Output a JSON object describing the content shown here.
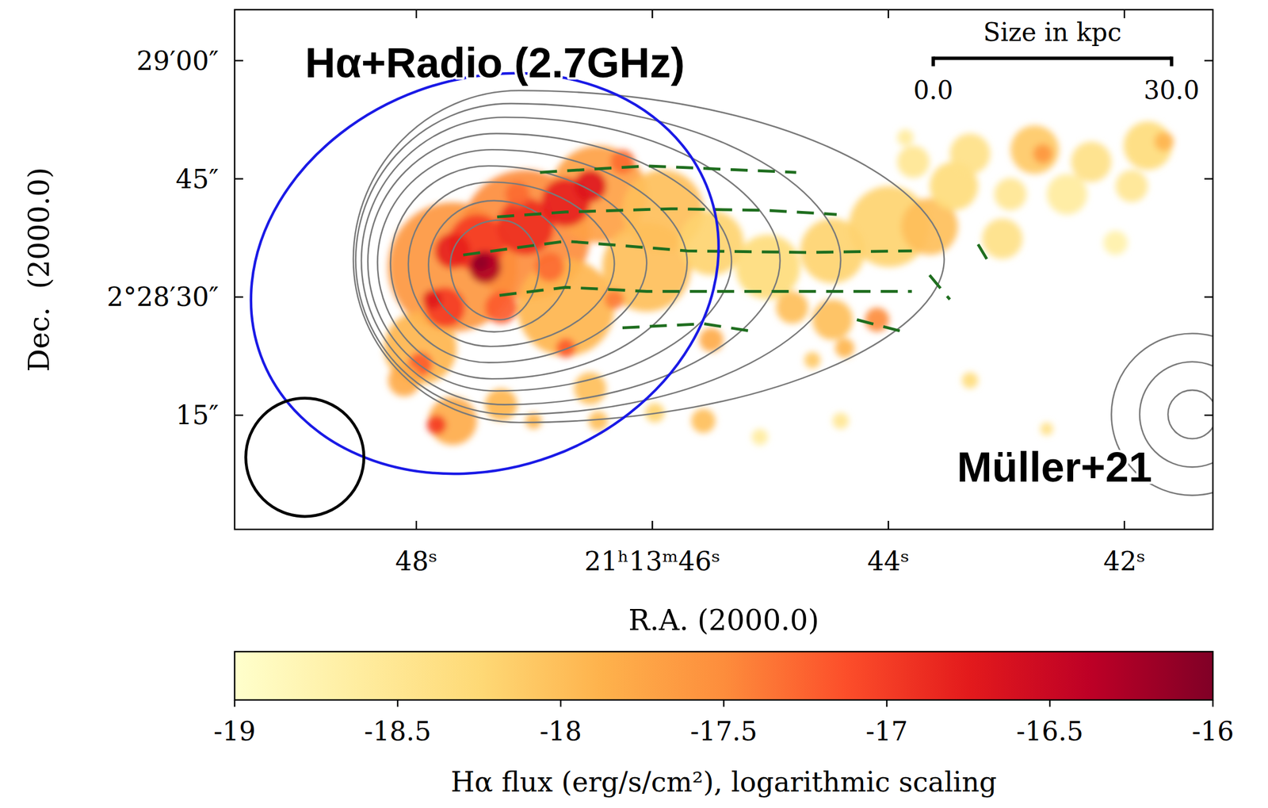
{
  "chart_data": {
    "type": "image",
    "title": "Hα+Radio (2.7GHz)",
    "annotation": "Müller+21",
    "x_label": "R.A. (2000.0)",
    "y_label": "Dec.  (2000.0)",
    "xlim": [
      49.54,
      41.25
    ],
    "ylim": [
      0.51,
      66.47
    ],
    "xticks": [
      {
        "value": 48,
        "label": "48ˢ"
      },
      {
        "value": 46,
        "label": "21ʰ13ᵐ46ˢ"
      },
      {
        "value": 44,
        "label": "44ˢ"
      },
      {
        "value": 42,
        "label": "42ˢ"
      }
    ],
    "yticks": [
      {
        "value": 60,
        "label": "29′00″"
      },
      {
        "value": 45,
        "label": "45″"
      },
      {
        "value": 30,
        "label": "2°28′30″"
      },
      {
        "value": 15,
        "label": "15″"
      }
    ],
    "halpha_blobs": {
      "ra": [
        47.692,
        47.075,
        46.459,
        47.966,
        47.692,
        46.733,
        46.048,
        45.911,
        45.5,
        45.021,
        44.473,
        43.993,
        43.651,
        43.445,
        43.788,
        43.308,
        42.76,
        42.692,
        42.281,
        41.801,
        41.664,
        42.486,
        41.938,
        42.966,
        43.034,
        42.075,
        43.856,
        44.815,
        44.473,
        44.096,
        44.37,
        44.644,
        45.5,
        45.568,
        45.979,
        43.308,
        42.658,
        44.404,
        45.089,
        46.527,
        46.459,
        47.007,
        47.281,
        47.486,
        47.075,
        46.733,
        46.527,
        47.418,
        47.452,
        47.692,
        47.76,
        47.863,
        47.966,
        47.281,
        46.87,
        47.829,
        46.733,
        46.322,
        46.253,
        47.144,
        48.103
      ],
      "dec": [
        33.8,
        37.91,
        43.05,
        23.53,
        14.28,
        28.66,
        33.8,
        40.99,
        36.88,
        33.8,
        35.86,
        38.94,
        38.94,
        44.08,
        47.16,
        48.18,
        48.7,
        48.18,
        47.16,
        49.21,
        49.73,
        43.05,
        44.08,
        43.05,
        37.4,
        36.88,
        50.24,
        28.66,
        27.12,
        27.12,
        23.53,
        21.99,
        24.56,
        14.28,
        15.31,
        19.42,
        13.25,
        14.28,
        12.23,
        18.39,
        14.28,
        14.28,
        16.34,
        36.88,
        38.94,
        42.02,
        44.08,
        33.8,
        34.32,
        35.86,
        28.66,
        29.69,
        21.47,
        28.66,
        33.8,
        13.77,
        23.53,
        29.69,
        47.16,
        43.05,
        19.42
      ],
      "radius": [
        8.22,
        8.22,
        6.16,
        4.62,
        3.08,
        6.16,
        5.65,
        5.14,
        4.11,
        4.11,
        4.11,
        5.14,
        3.6,
        3.08,
        2.05,
        2.57,
        3.08,
        1.23,
        2.57,
        3.08,
        1.23,
        2.57,
        2.05,
        2.05,
        2.57,
        1.54,
        1.03,
        2.05,
        2.57,
        1.54,
        1.23,
        1.03,
        1.54,
        1.54,
        1.23,
        1.03,
        0.82,
        1.03,
        1.03,
        2.05,
        1.23,
        1.03,
        2.05,
        3.6,
        3.6,
        3.08,
        2.05,
        2.05,
        1.03,
        2.26,
        2.57,
        1.23,
        1.54,
        2.05,
        1.85,
        1.23,
        1.23,
        1.23,
        1.54,
        1.54,
        2.05
      ],
      "log_flux": [
        -17.6,
        -17.5,
        -17.7,
        -17.9,
        -17.8,
        -17.9,
        -18.0,
        -18.0,
        -18.2,
        -18.3,
        -18.2,
        -18.2,
        -18.0,
        -18.3,
        -18.5,
        -18.4,
        -18.1,
        -17.6,
        -18.4,
        -18.3,
        -17.9,
        -18.6,
        -18.5,
        -18.5,
        -18.4,
        -18.7,
        -18.6,
        -18.0,
        -18.0,
        -17.5,
        -17.9,
        -18.1,
        -17.8,
        -18.0,
        -18.2,
        -18.3,
        -18.4,
        -18.5,
        -18.6,
        -18.0,
        -18.0,
        -17.9,
        -17.9,
        -17.0,
        -16.9,
        -16.8,
        -16.7,
        -16.3,
        -16.1,
        -16.8,
        -17.0,
        -16.7,
        -17.2,
        -17.2,
        -17.3,
        -17.0,
        -17.2,
        -17.4,
        -17.3,
        -17.3,
        -17.8
      ]
    },
    "colorbar": {
      "range": [
        -19,
        -16
      ],
      "ticks": [
        -19,
        -18.5,
        -18,
        -17.5,
        -17,
        -16.5,
        -16
      ],
      "label": "Hα flux (erg/s/cm²), logarithmic scaling"
    },
    "radio_contours": [
      {
        "ra_east": 47.712,
        "ra_west": 46.959,
        "dec_north": 39.76,
        "dec_south": 27.12,
        "dec_mid": 34.1
      },
      {
        "ra_east": 47.897,
        "ra_west": 46.699,
        "dec_north": 42.23,
        "dec_south": 25.58,
        "dec_mid": 34.1
      },
      {
        "ra_east": 48.068,
        "ra_west": 46.322,
        "dec_north": 44.59,
        "dec_south": 23.73,
        "dec_mid": 34.2
      },
      {
        "ra_east": 48.219,
        "ra_west": 46.048,
        "dec_north": 46.64,
        "dec_south": 21.68,
        "dec_mid": 34.3
      },
      {
        "ra_east": 48.329,
        "ra_west": 45.705,
        "dec_north": 48.7,
        "dec_south": 19.62,
        "dec_mid": 34.4
      },
      {
        "ra_east": 48.411,
        "ra_west": 45.329,
        "dec_north": 50.75,
        "dec_south": 18.08,
        "dec_mid": 34.5
      },
      {
        "ra_east": 48.466,
        "ra_west": 44.918,
        "dec_north": 52.81,
        "dec_south": 16.34,
        "dec_mid": 34.6
      },
      {
        "ra_east": 48.514,
        "ra_west": 44.404,
        "dec_north": 54.55,
        "dec_south": 15.1,
        "dec_mid": 34.7
      },
      {
        "ra_east": 48.534,
        "ra_west": 43.527,
        "dec_north": 56.2,
        "dec_south": 14.08,
        "dec_mid": 34.8
      }
    ],
    "companion_contours": {
      "ra": 41.425,
      "dec": 15.1,
      "radii": [
        3.08,
        6.68,
        10.27
      ]
    },
    "polarization_vectors": [
      {
        "ra": [
          46.952,
          46.048,
          44.781
        ],
        "dec": [
          45.82,
          46.64,
          45.82
        ]
      },
      {
        "ra": [
          47.315,
          46.733,
          45.842,
          45.021,
          44.438
        ],
        "dec": [
          40.17,
          40.79,
          41.2,
          40.99,
          40.48
        ]
      },
      {
        "ra": [
          47.603,
          46.733,
          45.705,
          44.678,
          43.801
        ],
        "dec": [
          35.34,
          37.09,
          35.86,
          35.65,
          35.86
        ]
      },
      {
        "ra": [
          47.295,
          46.733,
          46.048,
          45.021,
          43.801
        ],
        "dec": [
          30.21,
          31.23,
          30.72,
          30.72,
          30.72
        ]
      },
      {
        "ra": [
          46.253,
          45.568,
          45.123
        ],
        "dec": [
          26.1,
          26.61,
          25.58
        ]
      },
      {
        "ra": [
          44.267,
          43.822
        ],
        "dec": [
          27.12,
          25.38
        ]
      },
      {
        "ra": [
          43.651,
          43.479
        ],
        "dec": [
          32.77,
          29.69
        ]
      },
      {
        "ra": [
          43.24,
          43.158
        ],
        "dec": [
          36.68,
          34.62
        ]
      }
    ],
    "region_ellipse": {
      "ra": 47.42,
      "dec": 32.98,
      "a": 30.3,
      "b": 24.7,
      "position_angle": 20
    },
    "beam": {
      "ra": 48.945,
      "dec": 9.66,
      "radius": 7.5
    },
    "scale_bar": {
      "title": "Size in kpc",
      "ra": [
        43.62,
        41.6
      ],
      "dec": 60.3,
      "start": {
        "value": 0,
        "label": "0.0"
      },
      "end": {
        "value": 30,
        "label": "30.0"
      }
    },
    "grid": false
  }
}
